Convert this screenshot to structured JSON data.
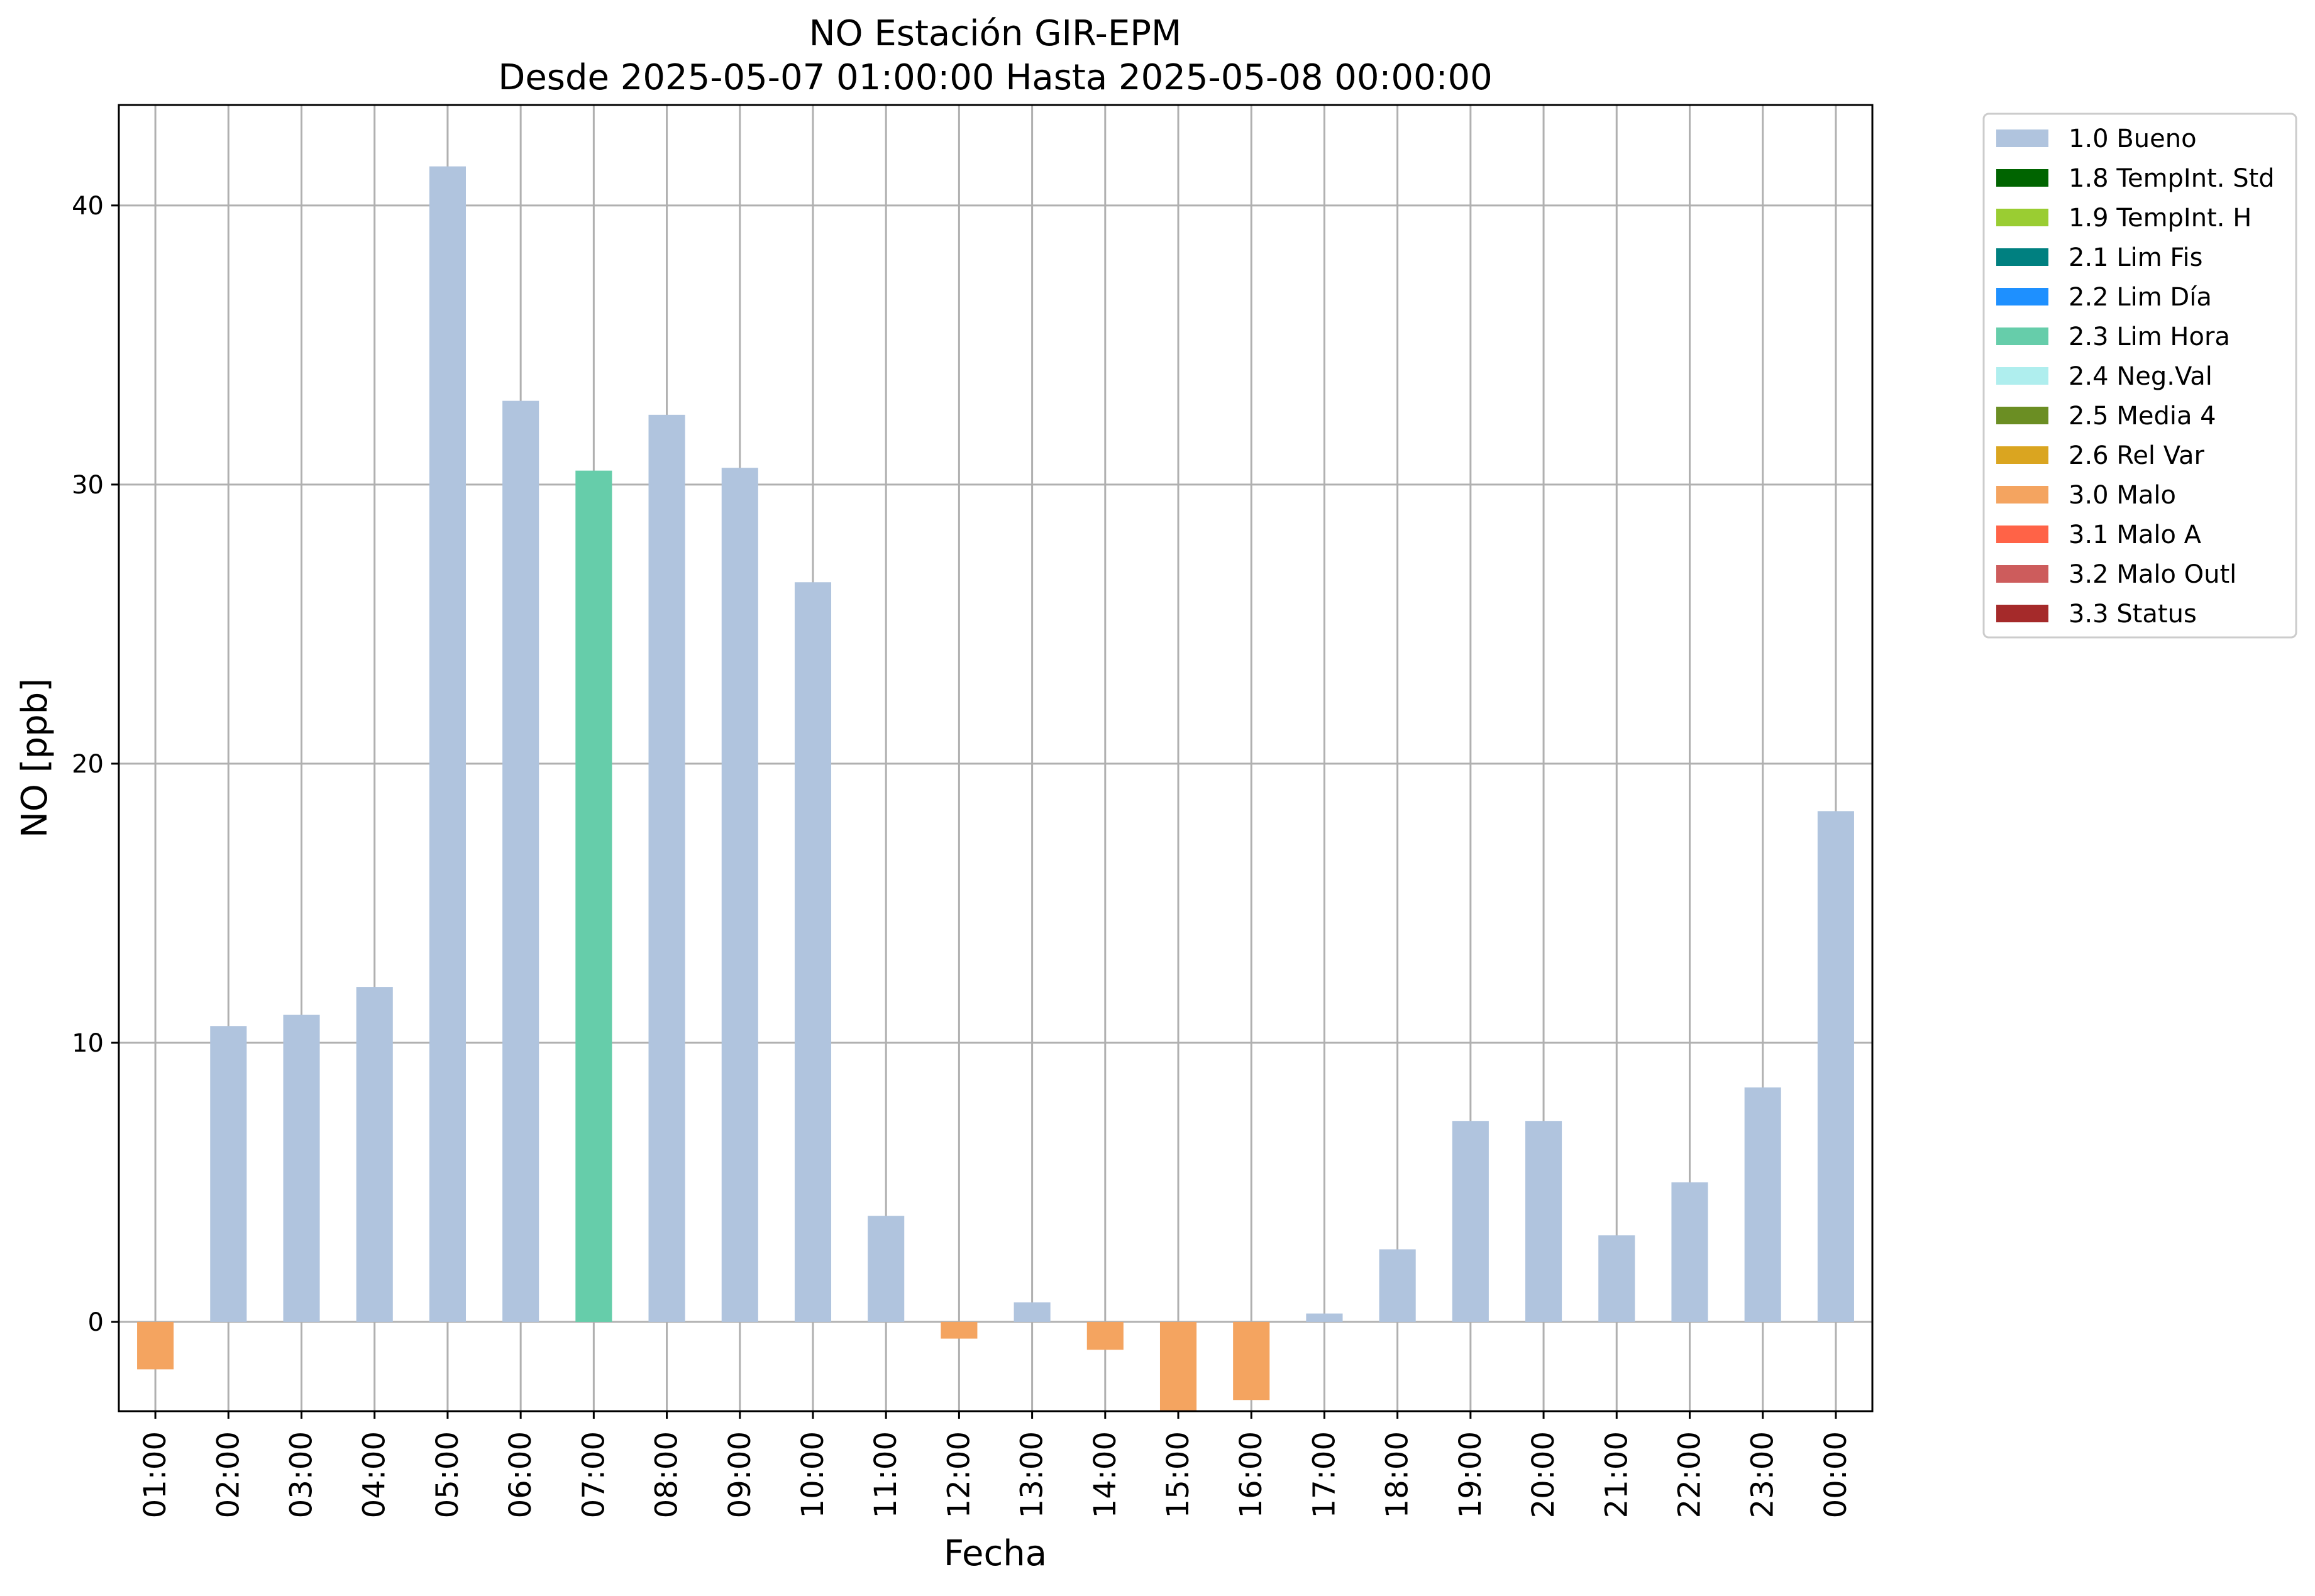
{
  "chart_data": {
    "type": "bar",
    "title": "NO Estación GIR-EPM",
    "subtitle": "Desde 2025-05-07 01:00:00 Hasta 2025-05-08 00:00:00",
    "xlabel": "Fecha",
    "ylabel": "NO [ppb]",
    "ylim": [
      -3.2,
      43.6
    ],
    "yticks": [
      0,
      10,
      20,
      30,
      40
    ],
    "grid": true,
    "legend_position": "outside-top-right",
    "categories": [
      "01:00",
      "02:00",
      "03:00",
      "04:00",
      "05:00",
      "06:00",
      "07:00",
      "08:00",
      "09:00",
      "10:00",
      "11:00",
      "12:00",
      "13:00",
      "14:00",
      "15:00",
      "16:00",
      "17:00",
      "18:00",
      "19:00",
      "20:00",
      "21:00",
      "22:00",
      "23:00",
      "00:00"
    ],
    "values": [
      -1.7,
      10.6,
      11.0,
      12.0,
      41.4,
      33.0,
      30.5,
      32.5,
      30.6,
      26.5,
      3.8,
      -0.6,
      0.7,
      -1.0,
      -3.2,
      -2.8,
      0.3,
      2.6,
      7.2,
      7.2,
      3.1,
      5.0,
      8.4,
      18.3
    ],
    "flags": [
      "3.0 Malo",
      "1.0 Bueno",
      "1.0 Bueno",
      "1.0 Bueno",
      "1.0 Bueno",
      "1.0 Bueno",
      "2.3 Lim Hora",
      "1.0 Bueno",
      "1.0 Bueno",
      "1.0 Bueno",
      "1.0 Bueno",
      "3.0 Malo",
      "1.0 Bueno",
      "3.0 Malo",
      "3.0 Malo",
      "3.0 Malo",
      "1.0 Bueno",
      "1.0 Bueno",
      "1.0 Bueno",
      "1.0 Bueno",
      "1.0 Bueno",
      "1.0 Bueno",
      "1.0 Bueno",
      "1.0 Bueno"
    ],
    "legend": [
      {
        "label": "1.0 Bueno",
        "color": "#b0c4de"
      },
      {
        "label": "1.8 TempInt. Std",
        "color": "#006400"
      },
      {
        "label": "1.9 TempInt. H",
        "color": "#9acd32"
      },
      {
        "label": "2.1 Lim Fis",
        "color": "#008080"
      },
      {
        "label": "2.2 Lim Día",
        "color": "#1e90ff"
      },
      {
        "label": "2.3 Lim Hora",
        "color": "#66cdaa"
      },
      {
        "label": "2.4 Neg.Val",
        "color": "#afeeee"
      },
      {
        "label": "2.5 Media 4",
        "color": "#6b8e23"
      },
      {
        "label": "2.6 Rel Var",
        "color": "#daa520"
      },
      {
        "label": "3.0 Malo",
        "color": "#f4a460"
      },
      {
        "label": "3.1 Malo A",
        "color": "#ff6347"
      },
      {
        "label": "3.2 Malo Outl",
        "color": "#cd5c5c"
      },
      {
        "label": "3.3 Status",
        "color": "#a52a2a"
      }
    ]
  }
}
